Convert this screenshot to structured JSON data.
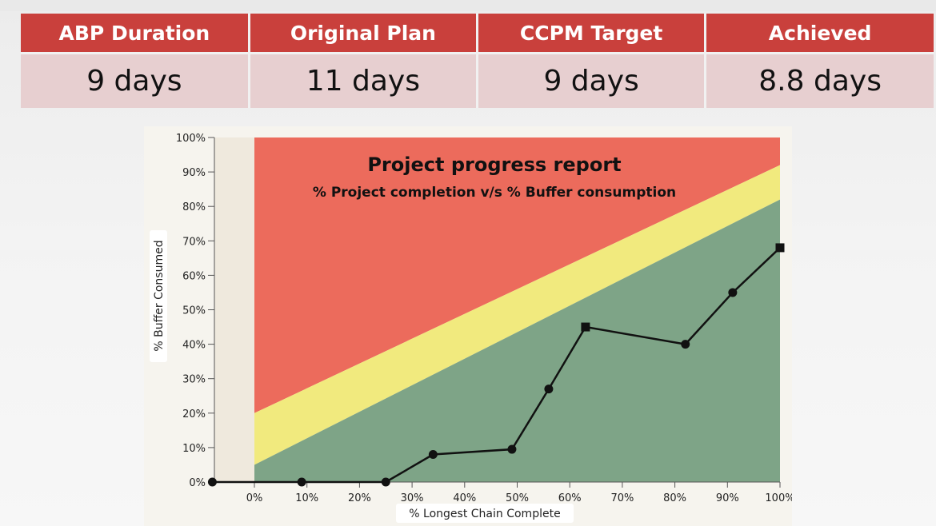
{
  "summary": {
    "headers": [
      "ABP Duration",
      "Original Plan",
      "CCPM Target",
      "Achieved"
    ],
    "values": [
      "9 days",
      "11 days",
      "9 days",
      "8.8 days"
    ]
  },
  "colors": {
    "header_bg": "#c9403c",
    "cell_bg": "#e7cfd0",
    "red_zone": "#ec6b5c",
    "yellow_zone": "#f1ea7e",
    "green_zone": "#7ea487"
  },
  "chart_data": {
    "type": "line",
    "title": "Project progress report",
    "subtitle": "% Project completion v/s % Buffer consumption",
    "xlabel": "% Longest Chain Complete",
    "ylabel": "% Buffer Consumed",
    "xlim": [
      -8,
      100
    ],
    "ylim": [
      0,
      100
    ],
    "x_ticks": [
      "0%",
      "10%",
      "20%",
      "30%",
      "40%",
      "50%",
      "60%",
      "70%",
      "80%",
      "90%",
      "100%"
    ],
    "y_ticks": [
      "0%",
      "10%",
      "20%",
      "30%",
      "40%",
      "50%",
      "60%",
      "70%",
      "80%",
      "90%",
      "100%"
    ],
    "zones": {
      "green_yellow_boundary": [
        [
          0,
          5
        ],
        [
          100,
          82
        ]
      ],
      "yellow_red_boundary": [
        [
          0,
          20
        ],
        [
          100,
          92
        ]
      ]
    },
    "series": [
      {
        "points": [
          {
            "x": -8,
            "y": 0,
            "marker": "circle"
          },
          {
            "x": 9,
            "y": 0,
            "marker": "circle"
          },
          {
            "x": 25,
            "y": 0,
            "marker": "circle"
          },
          {
            "x": 34,
            "y": 8,
            "marker": "circle"
          },
          {
            "x": 49,
            "y": 9.5,
            "marker": "circle"
          },
          {
            "x": 56,
            "y": 27,
            "marker": "circle"
          },
          {
            "x": 63,
            "y": 45,
            "marker": "square"
          },
          {
            "x": 82,
            "y": 40,
            "marker": "circle"
          },
          {
            "x": 91,
            "y": 55,
            "marker": "circle"
          },
          {
            "x": 100,
            "y": 68,
            "marker": "square"
          }
        ]
      }
    ]
  }
}
